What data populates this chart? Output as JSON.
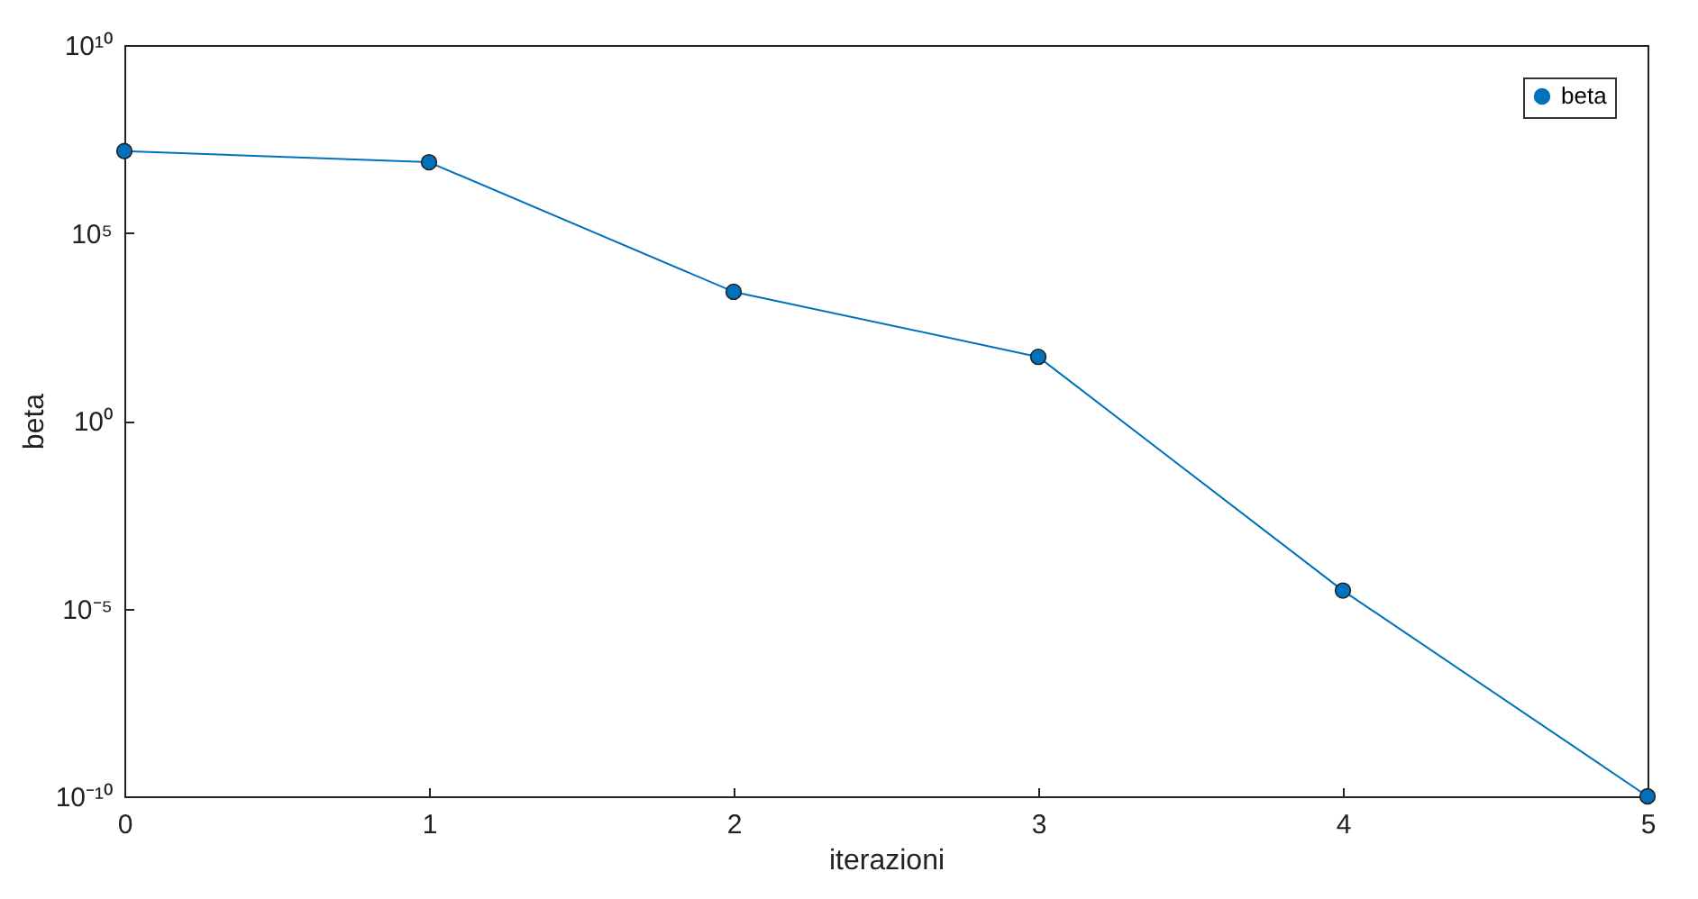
{
  "chart_data": {
    "type": "line",
    "xlabel": "iterazioni",
    "ylabel": "beta",
    "x": [
      0,
      1,
      2,
      3,
      4,
      5
    ],
    "series": [
      {
        "name": "beta",
        "color": "#0072bd",
        "values": [
          15000000.0,
          7600000.0,
          2700,
          50,
          3e-05,
          1e-10
        ]
      }
    ],
    "log": "y",
    "xlim": [
      0,
      5
    ],
    "xticks": [
      0,
      1,
      2,
      3,
      4,
      5
    ],
    "ylim": [
      1e-10,
      10000000000.0
    ],
    "yticks": [
      {
        "value": 1e-10,
        "label": "10⁻¹⁰"
      },
      {
        "value": 1e-05,
        "label": "10⁻⁵"
      },
      {
        "value": 1,
        "label": "10⁰"
      },
      {
        "value": 100000.0,
        "label": "10⁵"
      },
      {
        "value": 10000000000.0,
        "label": "10¹⁰"
      }
    ],
    "grid": false,
    "legend": "top right",
    "marker": "circle",
    "line_style": "solid"
  }
}
